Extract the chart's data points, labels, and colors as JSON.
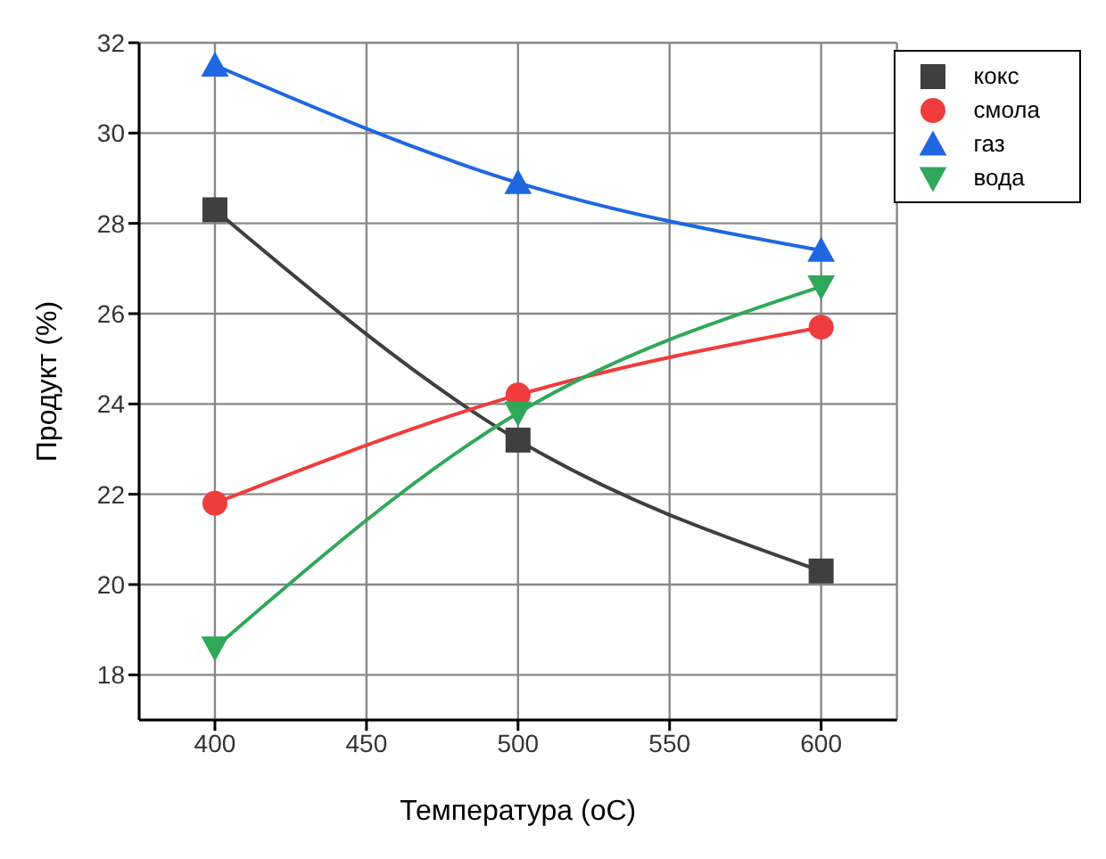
{
  "chart_data": {
    "type": "line",
    "xlabel": "Температура (oC)",
    "ylabel": "Продукт (%)",
    "x": [
      400,
      500,
      600
    ],
    "series": [
      {
        "name": "кокс",
        "color": "#3f3f3f",
        "marker": "square",
        "values": [
          28.3,
          23.2,
          20.3
        ]
      },
      {
        "name": "смола",
        "color": "#f03c3c",
        "marker": "circle",
        "values": [
          21.8,
          24.2,
          25.7
        ]
      },
      {
        "name": "газ",
        "color": "#1f67e0",
        "marker": "triangle",
        "values": [
          31.5,
          28.9,
          27.4
        ]
      },
      {
        "name": "вода",
        "color": "#2fa85a",
        "marker": "triangle-down",
        "values": [
          18.6,
          23.8,
          26.6
        ]
      }
    ],
    "xlim": [
      375,
      625
    ],
    "xticks": [
      400,
      450,
      500,
      550,
      600
    ],
    "ylim": [
      17,
      32
    ],
    "yticks": [
      18,
      20,
      22,
      24,
      26,
      28,
      30,
      32
    ],
    "grid": true,
    "legend": "top right"
  }
}
